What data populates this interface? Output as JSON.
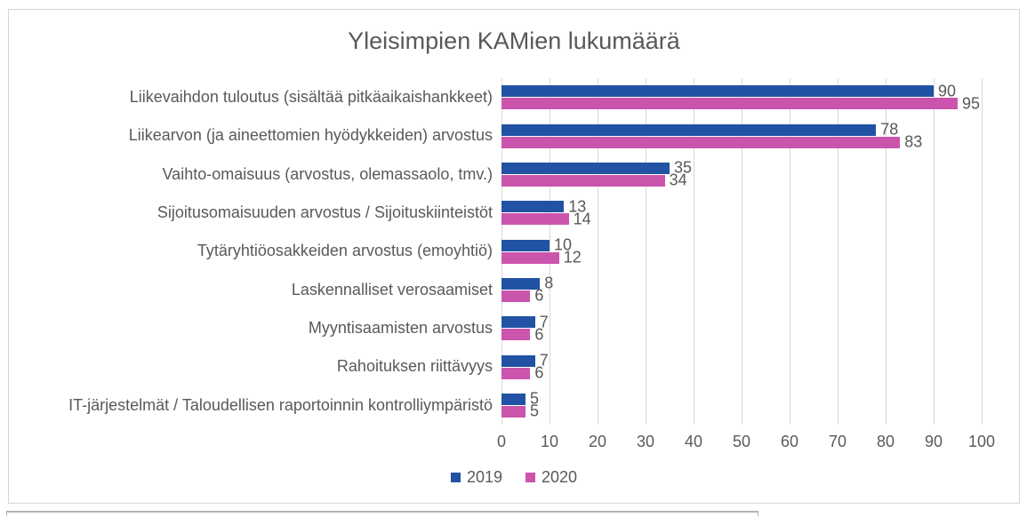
{
  "title": "Yleisimpien KAMien lukumäärä",
  "chart_data": {
    "type": "bar",
    "orientation": "horizontal",
    "title": "Yleisimpien KAMien lukumäärä",
    "categories": [
      "Liikevaihdon tuloutus (sisältää pitkäaikaishankkeet)",
      "Liikearvon (ja aineettomien hyödykkeiden) arvostus",
      "Vaihto-omaisuus (arvostus, olemassaolo, tmv.)",
      "Sijoitusomaisuuden arvostus / Sijoituskiinteistöt",
      "Tytäryhtiöosakkeiden arvostus (emoyhtiö)",
      "Laskennalliset verosaamiset",
      "Myyntisaamisten arvostus",
      "Rahoituksen riittävyys",
      "IT-järjestelmät / Taloudellisen raportoinnin kontrolliympäristö"
    ],
    "series": [
      {
        "name": "2019",
        "color": "#2152a3",
        "values": [
          90,
          78,
          35,
          13,
          10,
          8,
          7,
          7,
          5
        ]
      },
      {
        "name": "2020",
        "color": "#cb54ad",
        "values": [
          95,
          83,
          34,
          14,
          12,
          6,
          6,
          6,
          5
        ]
      }
    ],
    "xlabel": "",
    "ylabel": "",
    "xlim": [
      0,
      100
    ],
    "xticks": [
      0,
      10,
      20,
      30,
      40,
      50,
      60,
      70,
      80,
      90,
      100
    ],
    "grid": "vertical",
    "data_labels": true,
    "legend_position": "bottom"
  },
  "colors": {
    "text": "#595959",
    "grid": "#d9d9d9",
    "border": "#d7d7d7"
  }
}
